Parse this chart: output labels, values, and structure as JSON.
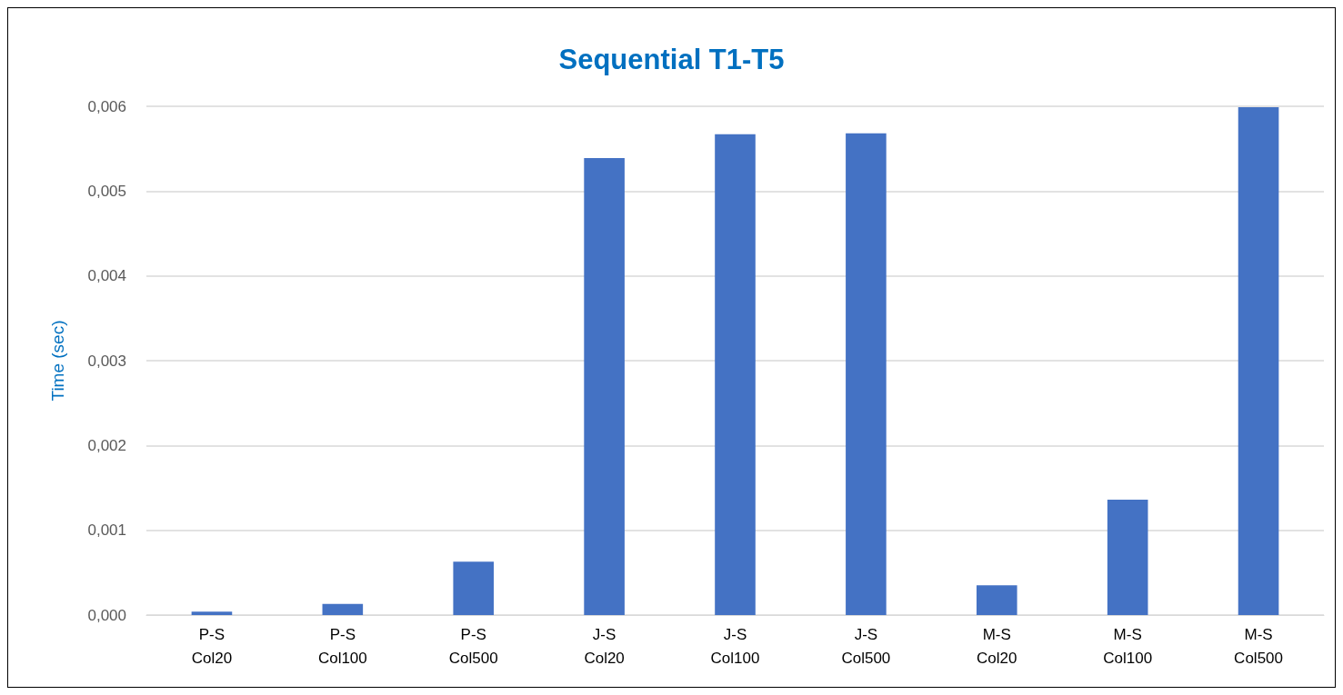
{
  "chart_data": {
    "type": "bar",
    "title": "Sequential T1-T5",
    "ylabel": "Time (sec)",
    "categories": [
      "P-S\nCol20",
      "P-S\nCol100",
      "P-S\nCol500",
      "J-S\nCol20",
      "J-S\nCol100",
      "J-S\nCol500",
      "M-S\nCol20",
      "M-S\nCol100",
      "M-S\nCol500"
    ],
    "values": [
      4e-05,
      0.00013,
      0.00063,
      0.00539,
      0.00567,
      0.00568,
      0.00035,
      0.00136,
      0.00599
    ],
    "color": "#4472c4",
    "ylim": [
      0,
      0.006
    ],
    "yticks": [
      {
        "value": 0,
        "label": "0,000"
      },
      {
        "value": 0.001,
        "label": "0,001"
      },
      {
        "value": 0.002,
        "label": "0,002"
      },
      {
        "value": 0.003,
        "label": "0,003"
      },
      {
        "value": 0.004,
        "label": "0,004"
      },
      {
        "value": 0.005,
        "label": "0,005"
      },
      {
        "value": 0.006,
        "label": "0,006"
      }
    ],
    "grid": "y"
  }
}
